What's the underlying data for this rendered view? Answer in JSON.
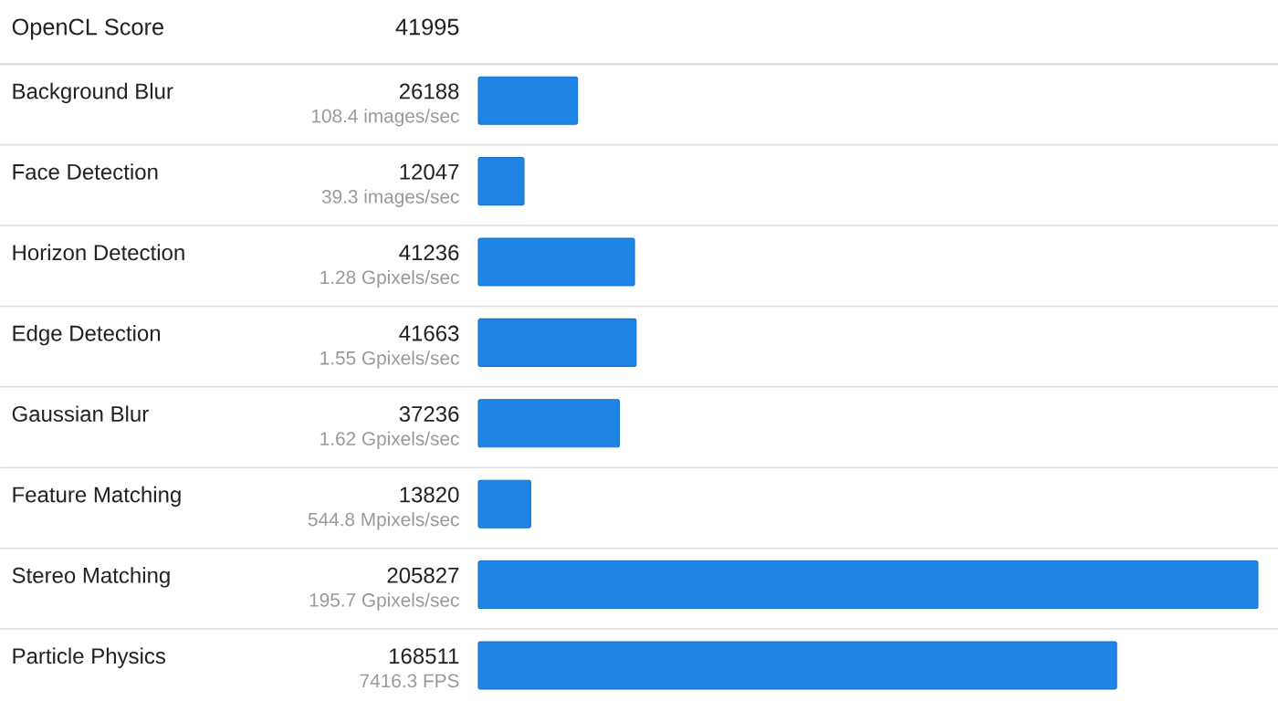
{
  "chart_data": {
    "type": "bar",
    "orientation": "horizontal",
    "title": "OpenCL Score",
    "subtitle": "41995",
    "categories": [
      "Background Blur",
      "Face Detection",
      "Horizon Detection",
      "Edge Detection",
      "Gaussian Blur",
      "Feature Matching",
      "Stereo Matching",
      "Particle Physics"
    ],
    "values": [
      26188,
      12047,
      41236,
      41663,
      37236,
      13820,
      205827,
      168511
    ],
    "annotations": [
      "108.4 images/sec",
      "39.3 images/sec",
      "1.28 Gpixels/sec",
      "1.55 Gpixels/sec",
      "1.62 Gpixels/sec",
      "544.8 Mpixels/sec",
      "195.7 Gpixels/sec",
      "7416.3 FPS"
    ],
    "color": "#1e84e6",
    "xlim": [
      0,
      205827
    ],
    "data_labels": true
  }
}
